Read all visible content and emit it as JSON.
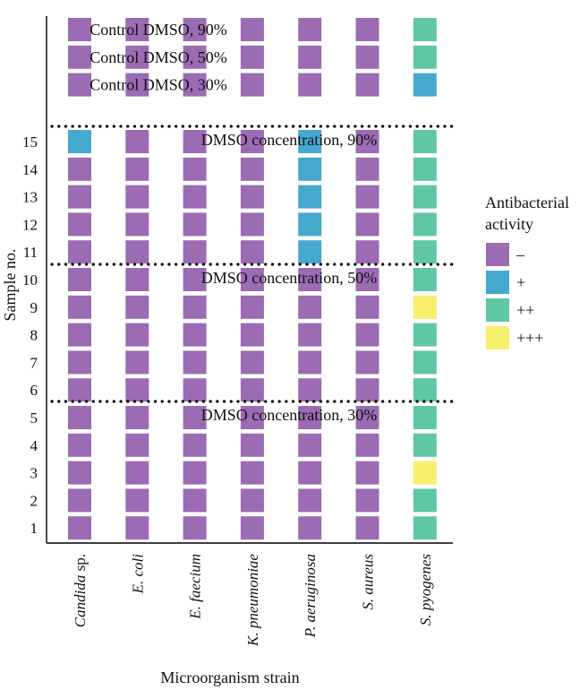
{
  "chart_data": {
    "type": "heatmap",
    "xlabel": "Microorganism strain",
    "ylabel": "Sample no.",
    "columns": [
      {
        "parts": [
          {
            "t": "Candida",
            "italic": true
          },
          {
            "t": " sp.",
            "italic": false
          }
        ]
      },
      {
        "parts": [
          {
            "t": "E. coli",
            "italic": true
          }
        ]
      },
      {
        "parts": [
          {
            "t": "E. faecium",
            "italic": true
          }
        ]
      },
      {
        "parts": [
          {
            "t": "K. pneumoniae",
            "italic": true
          }
        ]
      },
      {
        "parts": [
          {
            "t": "P. aeruginosa",
            "italic": true
          }
        ]
      },
      {
        "parts": [
          {
            "t": "S. aureus",
            "italic": true
          }
        ]
      },
      {
        "parts": [
          {
            "t": "S. pyogenes",
            "italic": true
          }
        ]
      }
    ],
    "levels": [
      {
        "label": "–",
        "color": "#9b6bb3"
      },
      {
        "label": "+",
        "color": "#45a8cf"
      },
      {
        "label": "++",
        "color": "#5fc8a3"
      },
      {
        "label": "+++",
        "color": "#f7ef6e"
      }
    ],
    "legend": {
      "title_lines": [
        "Antibacterial",
        "activity"
      ],
      "position": "right"
    },
    "control_rows": [
      {
        "label": "Control DMSO, 90%",
        "values": [
          0,
          0,
          0,
          0,
          0,
          0,
          2
        ]
      },
      {
        "label": "Control DMSO, 50%",
        "values": [
          0,
          0,
          0,
          0,
          0,
          0,
          2
        ]
      },
      {
        "label": "Control DMSO, 30%",
        "values": [
          0,
          0,
          0,
          0,
          0,
          0,
          1
        ]
      }
    ],
    "sample_rows": [
      {
        "sample": "15",
        "values": [
          1,
          0,
          0,
          0,
          1,
          0,
          2
        ]
      },
      {
        "sample": "14",
        "values": [
          0,
          0,
          0,
          0,
          1,
          0,
          2
        ]
      },
      {
        "sample": "13",
        "values": [
          0,
          0,
          0,
          0,
          1,
          0,
          2
        ]
      },
      {
        "sample": "12",
        "values": [
          0,
          0,
          0,
          0,
          1,
          0,
          2
        ]
      },
      {
        "sample": "11",
        "values": [
          0,
          0,
          0,
          0,
          1,
          0,
          2
        ]
      },
      {
        "sample": "10",
        "values": [
          0,
          0,
          0,
          0,
          0,
          0,
          2
        ]
      },
      {
        "sample": "9",
        "values": [
          0,
          0,
          0,
          0,
          0,
          0,
          3
        ]
      },
      {
        "sample": "8",
        "values": [
          0,
          0,
          0,
          0,
          0,
          0,
          2
        ]
      },
      {
        "sample": "7",
        "values": [
          0,
          0,
          0,
          0,
          0,
          0,
          2
        ]
      },
      {
        "sample": "6",
        "values": [
          0,
          0,
          0,
          0,
          0,
          0,
          2
        ]
      },
      {
        "sample": "5",
        "values": [
          0,
          0,
          0,
          0,
          0,
          0,
          2
        ]
      },
      {
        "sample": "4",
        "values": [
          0,
          0,
          0,
          0,
          0,
          0,
          2
        ]
      },
      {
        "sample": "3",
        "values": [
          0,
          0,
          0,
          0,
          0,
          0,
          3
        ]
      },
      {
        "sample": "2",
        "values": [
          0,
          0,
          0,
          0,
          0,
          0,
          2
        ]
      },
      {
        "sample": "1",
        "values": [
          0,
          0,
          0,
          0,
          0,
          0,
          2
        ]
      }
    ],
    "groups": [
      {
        "label": "DMSO concentration, 90%",
        "samples": [
          "15",
          "14",
          "13",
          "12",
          "11"
        ]
      },
      {
        "label": "DMSO concentration, 50%",
        "samples": [
          "10",
          "9",
          "8",
          "7",
          "6"
        ]
      },
      {
        "label": "DMSO concentration, 30%",
        "samples": [
          "5",
          "4",
          "3",
          "2",
          "1"
        ]
      }
    ]
  }
}
